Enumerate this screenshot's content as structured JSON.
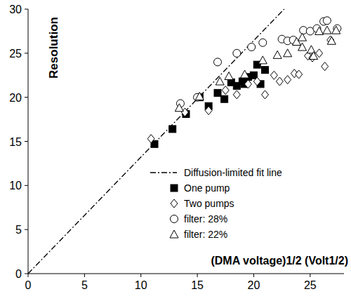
{
  "chart_data": {
    "type": "scatter",
    "x_label": "(DMA voltage)1/2 (Volt1/2)",
    "y_label": "Resolution",
    "xlim": [
      0,
      28
    ],
    "ylim": [
      0,
      30
    ],
    "xticks": [
      0,
      5,
      10,
      15,
      20,
      25
    ],
    "yticks": [
      0,
      5,
      10,
      15,
      20,
      25,
      30
    ],
    "grid": false,
    "legend": "right",
    "series": [
      {
        "name": "Diffusion-limited fit line",
        "type": "line",
        "line_style": "dashdot",
        "color": "#000000",
        "x": [
          0,
          22.7
        ],
        "values": [
          0,
          30
        ]
      },
      {
        "name": "One pump",
        "marker": "square",
        "color": "#000000",
        "x": [
          11.2,
          12.8,
          14.0,
          15.2,
          16.0,
          16.8,
          17.4,
          18.0,
          18.5,
          19.0,
          19.2,
          19.5,
          20.0,
          20.3,
          20.6,
          21.0
        ],
        "values": [
          14.7,
          16.4,
          18.1,
          20.0,
          19.0,
          20.5,
          19.8,
          21.7,
          21.3,
          21.8,
          21.5,
          22.3,
          22.5,
          23.7,
          21.5,
          23.1
        ]
      },
      {
        "name": "Two pumps",
        "marker": "diamond-open",
        "color": "#000000",
        "x": [
          10.9,
          13.9,
          16.0,
          17.5,
          18.5,
          19.5,
          20.3,
          21.0,
          21.8,
          22.3,
          23.0,
          23.6,
          24.0,
          24.8,
          25.2,
          25.8,
          26.3,
          26.8
        ],
        "values": [
          15.3,
          18.3,
          18.5,
          20.8,
          20.3,
          21.5,
          21.8,
          20.3,
          22.5,
          21.8,
          22.0,
          22.7,
          22.6,
          24.7,
          24.5,
          25.0,
          23.5,
          26.5
        ]
      },
      {
        "name": "filter: 28%",
        "marker": "circle-open",
        "color": "#000000",
        "x": [
          13.5,
          15.0,
          16.8,
          18.5,
          19.8,
          20.8,
          22.5,
          23.0,
          23.5,
          24.4,
          25.0,
          25.6,
          26.2,
          26.5,
          27.4
        ],
        "values": [
          19.3,
          20.0,
          24.0,
          25.0,
          25.7,
          26.2,
          26.6,
          26.4,
          26.5,
          27.6,
          27.5,
          27.8,
          28.6,
          28.7,
          27.8
        ]
      },
      {
        "name": "filter: 22%",
        "marker": "triangle-open",
        "color": "#000000",
        "x": [
          13.4,
          15.2,
          17.0,
          17.8,
          19.2,
          20.8,
          22.1,
          23.0,
          23.8,
          24.3,
          24.3,
          25.1,
          25.3,
          25.8,
          26.5,
          26.9,
          27.3
        ],
        "values": [
          18.8,
          20.1,
          21.8,
          22.4,
          22.6,
          24.2,
          24.8,
          25.0,
          26.3,
          26.8,
          25.7,
          25.4,
          24.7,
          27.5,
          27.6,
          26.4,
          27.6
        ]
      }
    ]
  }
}
